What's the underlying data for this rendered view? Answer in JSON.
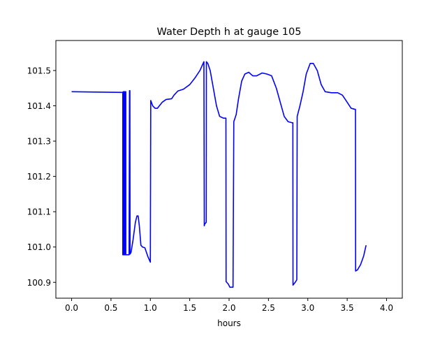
{
  "chart_data": {
    "type": "line",
    "title": "Water Depth h at gauge 105",
    "xlabel": "hours",
    "ylabel": "",
    "xlim": [
      -0.2,
      4.2
    ],
    "ylim": [
      100.855,
      101.585
    ],
    "xticks": [
      0.0,
      0.5,
      1.0,
      1.5,
      2.0,
      2.5,
      3.0,
      3.5,
      4.0
    ],
    "xtick_labels": [
      "0.0",
      "0.5",
      "1.0",
      "1.5",
      "2.0",
      "2.5",
      "3.0",
      "3.5",
      "4.0"
    ],
    "yticks": [
      100.9,
      101.0,
      101.1,
      101.2,
      101.3,
      101.4,
      101.5
    ],
    "ytick_labels": [
      "100.9",
      "101.0",
      "101.1",
      "101.2",
      "101.3",
      "101.4",
      "101.5"
    ],
    "grid": false,
    "series": [
      {
        "color": "#0000ff",
        "points": [
          [
            0.0,
            101.44
          ],
          [
            0.3,
            101.439
          ],
          [
            0.65,
            101.438
          ],
          [
            0.65,
            100.978
          ],
          [
            0.655,
            100.978
          ],
          [
            0.655,
            101.44
          ],
          [
            0.663,
            101.44
          ],
          [
            0.663,
            100.978
          ],
          [
            0.67,
            100.978
          ],
          [
            0.67,
            101.44
          ],
          [
            0.676,
            101.44
          ],
          [
            0.676,
            100.978
          ],
          [
            0.683,
            100.978
          ],
          [
            0.683,
            101.44
          ],
          [
            0.688,
            101.44
          ],
          [
            0.688,
            100.978
          ],
          [
            0.73,
            100.978
          ],
          [
            0.735,
            101.443
          ],
          [
            0.74,
            101.443
          ],
          [
            0.742,
            100.98
          ],
          [
            0.755,
            100.985
          ],
          [
            0.78,
            101.02
          ],
          [
            0.81,
            101.07
          ],
          [
            0.83,
            101.088
          ],
          [
            0.845,
            101.088
          ],
          [
            0.86,
            101.06
          ],
          [
            0.88,
            101.005
          ],
          [
            0.9,
            101.0
          ],
          [
            0.93,
            100.998
          ],
          [
            0.95,
            100.985
          ],
          [
            0.97,
            100.972
          ],
          [
            1.0,
            100.957
          ],
          [
            1.005,
            101.415
          ],
          [
            1.03,
            101.4
          ],
          [
            1.06,
            101.393
          ],
          [
            1.09,
            101.393
          ],
          [
            1.15,
            101.41
          ],
          [
            1.2,
            101.418
          ],
          [
            1.27,
            101.42
          ],
          [
            1.3,
            101.43
          ],
          [
            1.35,
            101.442
          ],
          [
            1.42,
            101.447
          ],
          [
            1.5,
            101.46
          ],
          [
            1.57,
            101.48
          ],
          [
            1.63,
            101.5
          ],
          [
            1.66,
            101.515
          ],
          [
            1.68,
            101.525
          ],
          [
            1.685,
            101.06
          ],
          [
            1.69,
            101.065
          ],
          [
            1.71,
            101.07
          ],
          [
            1.712,
            101.525
          ],
          [
            1.73,
            101.52
          ],
          [
            1.76,
            101.5
          ],
          [
            1.8,
            101.45
          ],
          [
            1.84,
            101.4
          ],
          [
            1.88,
            101.37
          ],
          [
            1.93,
            101.365
          ],
          [
            1.96,
            101.365
          ],
          [
            1.962,
            100.902
          ],
          [
            1.99,
            100.895
          ],
          [
            2.01,
            100.886
          ],
          [
            2.05,
            100.886
          ],
          [
            2.06,
            101.355
          ],
          [
            2.09,
            101.375
          ],
          [
            2.12,
            101.42
          ],
          [
            2.16,
            101.47
          ],
          [
            2.2,
            101.49
          ],
          [
            2.25,
            101.495
          ],
          [
            2.3,
            101.485
          ],
          [
            2.35,
            101.485
          ],
          [
            2.42,
            101.493
          ],
          [
            2.48,
            101.49
          ],
          [
            2.54,
            101.485
          ],
          [
            2.6,
            101.45
          ],
          [
            2.65,
            101.41
          ],
          [
            2.7,
            101.37
          ],
          [
            2.75,
            101.355
          ],
          [
            2.8,
            101.352
          ],
          [
            2.81,
            101.352
          ],
          [
            2.812,
            100.892
          ],
          [
            2.84,
            100.9
          ],
          [
            2.86,
            100.907
          ],
          [
            2.865,
            101.37
          ],
          [
            2.9,
            101.4
          ],
          [
            2.94,
            101.44
          ],
          [
            2.98,
            101.49
          ],
          [
            3.03,
            101.52
          ],
          [
            3.07,
            101.52
          ],
          [
            3.12,
            101.5
          ],
          [
            3.17,
            101.46
          ],
          [
            3.22,
            101.44
          ],
          [
            3.3,
            101.437
          ],
          [
            3.38,
            101.437
          ],
          [
            3.44,
            101.43
          ],
          [
            3.5,
            101.41
          ],
          [
            3.55,
            101.393
          ],
          [
            3.6,
            101.39
          ],
          [
            3.605,
            101.39
          ],
          [
            3.607,
            100.932
          ],
          [
            3.63,
            100.935
          ],
          [
            3.67,
            100.95
          ],
          [
            3.71,
            100.975
          ],
          [
            3.74,
            101.005
          ]
        ]
      }
    ]
  }
}
